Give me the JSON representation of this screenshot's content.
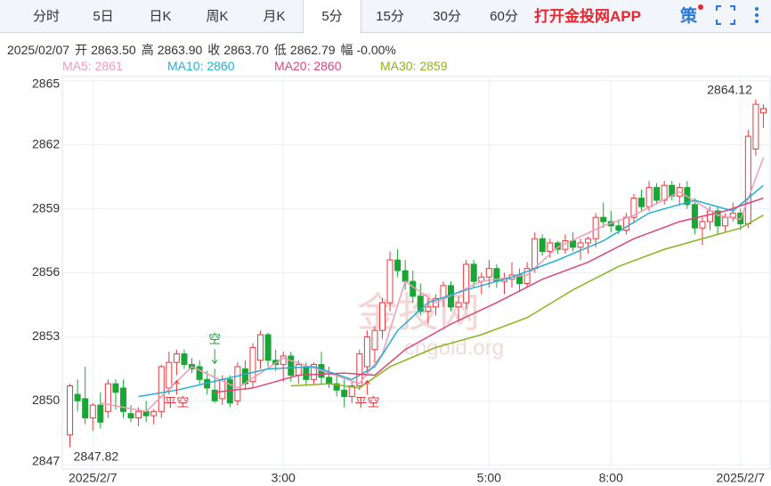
{
  "header": {
    "tabs": [
      "分时",
      "5日",
      "日K",
      "周K",
      "月K",
      "5分",
      "15分",
      "30分",
      "60分"
    ],
    "active_tab": 5,
    "app_link": "打开金投网APP",
    "strategy": "策",
    "date": "2025/02/07",
    "info": [
      {
        "label": "开",
        "value": "2863.50"
      },
      {
        "label": "高",
        "value": "2863.90"
      },
      {
        "label": "收",
        "value": "2863.70"
      },
      {
        "label": "低",
        "value": "2862.79"
      },
      {
        "label": "幅",
        "value": "-0.00%"
      }
    ]
  },
  "chart_data": {
    "type": "candlestick",
    "up_color": "#e8383d",
    "down_color": "#1aa637",
    "grid": true,
    "watermark": [
      "金投网",
      "cngold.org"
    ],
    "ylim": [
      2846.8,
      2865.2
    ],
    "yticks": [
      2847,
      2850,
      2853,
      2856,
      2859,
      2862,
      2865
    ],
    "xlim": [
      -1,
      92
    ],
    "xticks": [
      {
        "value": 3,
        "label": "2025/2/7"
      },
      {
        "value": 28,
        "label": "3:00"
      },
      {
        "value": 55,
        "label": "5:00"
      },
      {
        "value": 71,
        "label": "8:00"
      },
      {
        "value": 88,
        "label": "2025/2/7"
      }
    ],
    "ohlc": [
      [
        2848.4,
        2850.8,
        2847.82,
        2850.7
      ],
      [
        2850.3,
        2851.0,
        2849.5,
        2850.0
      ],
      [
        2850.1,
        2851.6,
        2848.9,
        2849.2
      ],
      [
        2849.2,
        2849.9,
        2848.6,
        2849.8
      ],
      [
        2849.8,
        2850.4,
        2848.7,
        2849.0
      ],
      [
        2849.5,
        2851.0,
        2849.2,
        2850.8
      ],
      [
        2850.8,
        2851.0,
        2849.6,
        2850.4
      ],
      [
        2850.6,
        2851.0,
        2849.2,
        2849.5
      ],
      [
        2849.4,
        2849.8,
        2849.0,
        2849.2
      ],
      [
        2849.2,
        2849.7,
        2848.8,
        2849.5
      ],
      [
        2849.5,
        2850.0,
        2849.0,
        2849.3
      ],
      [
        2849.3,
        2849.6,
        2848.9,
        2849.5
      ],
      [
        2849.5,
        2851.7,
        2849.2,
        2851.6
      ],
      [
        2850.6,
        2852.3,
        2850.3,
        2851.8
      ],
      [
        2851.8,
        2852.4,
        2851.2,
        2852.2
      ],
      [
        2852.2,
        2852.4,
        2851.5,
        2851.7
      ],
      [
        2851.7,
        2852.0,
        2851.3,
        2851.5
      ],
      [
        2851.6,
        2851.9,
        2850.8,
        2851.0
      ],
      [
        2851.0,
        2851.4,
        2850.3,
        2850.6
      ],
      [
        2850.5,
        2851.5,
        2849.9,
        2850.0
      ],
      [
        2850.1,
        2851.2,
        2849.8,
        2851.0
      ],
      [
        2851.0,
        2851.2,
        2849.7,
        2849.9
      ],
      [
        2850.0,
        2851.8,
        2849.8,
        2851.6
      ],
      [
        2851.5,
        2851.9,
        2850.5,
        2850.8
      ],
      [
        2850.9,
        2852.7,
        2850.6,
        2852.5
      ],
      [
        2851.9,
        2853.3,
        2851.5,
        2853.1
      ],
      [
        2853.1,
        2853.2,
        2851.6,
        2851.9
      ],
      [
        2851.9,
        2852.4,
        2851.4,
        2851.7
      ],
      [
        2851.7,
        2852.3,
        2850.9,
        2852.1
      ],
      [
        2852.1,
        2852.3,
        2850.9,
        2851.2
      ],
      [
        2851.2,
        2851.9,
        2850.8,
        2851.7
      ],
      [
        2851.6,
        2851.8,
        2850.7,
        2851.0
      ],
      [
        2851.0,
        2851.8,
        2850.8,
        2851.7
      ],
      [
        2851.7,
        2852.3,
        2850.8,
        2851.1
      ],
      [
        2851.1,
        2851.6,
        2850.6,
        2850.8
      ],
      [
        2850.8,
        2851.3,
        2850.2,
        2850.5
      ],
      [
        2850.5,
        2851.0,
        2849.7,
        2850.2
      ],
      [
        2850.2,
        2850.9,
        2849.9,
        2850.7
      ],
      [
        2850.7,
        2852.4,
        2850.5,
        2852.2
      ],
      [
        2851.6,
        2853.3,
        2851.2,
        2853.0
      ],
      [
        2852.4,
        2853.5,
        2851.8,
        2853.3
      ],
      [
        2853.3,
        2854.8,
        2852.9,
        2854.6
      ],
      [
        2854.6,
        2857.0,
        2854.2,
        2856.6
      ],
      [
        2856.6,
        2857.1,
        2855.8,
        2856.1
      ],
      [
        2856.1,
        2856.6,
        2855.2,
        2855.6
      ],
      [
        2855.6,
        2856.1,
        2854.6,
        2854.9
      ],
      [
        2854.9,
        2855.5,
        2854.0,
        2854.2
      ],
      [
        2854.2,
        2854.8,
        2853.6,
        2854.4
      ],
      [
        2854.4,
        2855.0,
        2854.0,
        2854.8
      ],
      [
        2854.8,
        2855.6,
        2854.4,
        2855.4
      ],
      [
        2855.4,
        2855.6,
        2854.2,
        2854.4
      ],
      [
        2854.4,
        2854.9,
        2853.7,
        2854.6
      ],
      [
        2854.6,
        2856.6,
        2854.3,
        2856.4
      ],
      [
        2856.4,
        2856.6,
        2855.3,
        2855.6
      ],
      [
        2855.6,
        2856.0,
        2855.0,
        2855.8
      ],
      [
        2855.8,
        2856.6,
        2855.3,
        2856.2
      ],
      [
        2856.2,
        2856.4,
        2855.3,
        2855.6
      ],
      [
        2855.6,
        2856.0,
        2855.0,
        2855.7
      ],
      [
        2855.7,
        2856.5,
        2855.3,
        2855.9
      ],
      [
        2855.9,
        2856.2,
        2855.1,
        2855.5
      ],
      [
        2855.5,
        2856.5,
        2855.3,
        2856.2
      ],
      [
        2856.2,
        2857.9,
        2856.0,
        2857.6
      ],
      [
        2857.6,
        2857.8,
        2856.8,
        2857.0
      ],
      [
        2857.0,
        2857.6,
        2856.7,
        2857.4
      ],
      [
        2857.4,
        2857.5,
        2856.9,
        2857.1
      ],
      [
        2857.1,
        2857.8,
        2856.9,
        2857.5
      ],
      [
        2857.5,
        2857.9,
        2857.0,
        2857.2
      ],
      [
        2857.2,
        2857.6,
        2856.6,
        2857.4
      ],
      [
        2857.4,
        2857.7,
        2856.9,
        2857.6
      ],
      [
        2857.6,
        2858.8,
        2857.2,
        2858.6
      ],
      [
        2858.6,
        2859.3,
        2858.1,
        2858.4
      ],
      [
        2858.4,
        2858.9,
        2857.9,
        2858.2
      ],
      [
        2858.2,
        2858.5,
        2857.8,
        2858.0
      ],
      [
        2858.0,
        2858.8,
        2857.8,
        2858.6
      ],
      [
        2858.6,
        2859.7,
        2858.3,
        2859.5
      ],
      [
        2859.5,
        2859.9,
        2858.9,
        2859.1
      ],
      [
        2859.1,
        2860.3,
        2858.9,
        2860.0
      ],
      [
        2860.0,
        2860.2,
        2859.2,
        2859.4
      ],
      [
        2859.4,
        2860.3,
        2859.2,
        2860.1
      ],
      [
        2860.1,
        2860.3,
        2859.4,
        2859.6
      ],
      [
        2859.6,
        2860.2,
        2859.2,
        2860.0
      ],
      [
        2860.0,
        2860.3,
        2859.0,
        2859.2
      ],
      [
        2859.2,
        2859.5,
        2857.8,
        2858.1
      ],
      [
        2858.1,
        2858.6,
        2857.3,
        2858.4
      ],
      [
        2858.4,
        2859.1,
        2858.0,
        2858.9
      ],
      [
        2858.9,
        2859.1,
        2857.8,
        2858.2
      ],
      [
        2858.2,
        2858.8,
        2857.9,
        2858.6
      ],
      [
        2858.6,
        2859.3,
        2858.4,
        2858.8
      ],
      [
        2858.8,
        2859.0,
        2858.0,
        2858.3
      ],
      [
        2858.3,
        2862.7,
        2858.1,
        2862.4
      ],
      [
        2861.8,
        2864.12,
        2861.5,
        2863.9
      ],
      [
        2863.5,
        2863.9,
        2862.79,
        2863.7
      ]
    ],
    "max_label": [
      90,
      1
    ],
    "min_label": [
      0,
      2
    ],
    "series": [
      {
        "name": "MA5: 2861",
        "color": "#f29ab9",
        "x": [
          4,
          10,
          16,
          22,
          28,
          34,
          38,
          41,
          44,
          48,
          54,
          60,
          64,
          70,
          74,
          80,
          85,
          88,
          91
        ],
        "values": [
          2849.9,
          2849.5,
          2851.6,
          2850.6,
          2852.0,
          2851.3,
          2850.8,
          2852.2,
          2855.6,
          2854.6,
          2855.6,
          2855.9,
          2857.2,
          2858.2,
          2858.7,
          2859.8,
          2858.7,
          2858.5,
          2861.4
        ]
      },
      {
        "name": "MA10: 2860",
        "color": "#22b0d6",
        "x": [
          9,
          14,
          20,
          26,
          32,
          37,
          40,
          43,
          47,
          52,
          58,
          64,
          70,
          76,
          82,
          87,
          91
        ],
        "values": [
          2850.2,
          2850.5,
          2851.0,
          2851.5,
          2851.6,
          2851.0,
          2851.6,
          2853.3,
          2854.6,
          2855.2,
          2855.8,
          2856.6,
          2857.5,
          2858.8,
          2859.4,
          2858.9,
          2860.1
        ]
      },
      {
        "name": "MA20: 2860",
        "color": "#e0457a",
        "x": [
          19,
          24,
          30,
          36,
          40,
          44,
          50,
          56,
          62,
          68,
          74,
          80,
          86,
          91
        ],
        "values": [
          2850.4,
          2850.6,
          2851.2,
          2851.3,
          2851.2,
          2852.4,
          2853.6,
          2854.6,
          2855.7,
          2856.5,
          2857.6,
          2858.4,
          2858.9,
          2859.5
        ]
      },
      {
        "name": "MA30: 2859",
        "color": "#8ab520",
        "x": [
          29,
          34,
          38,
          42,
          48,
          54,
          60,
          66,
          72,
          78,
          84,
          88,
          91
        ],
        "values": [
          2850.7,
          2850.8,
          2850.6,
          2851.6,
          2852.5,
          2853.1,
          2853.9,
          2855.2,
          2856.3,
          2857.1,
          2857.7,
          2858.1,
          2858.7
        ]
      }
    ],
    "annotations": [
      {
        "text": "平空",
        "x": 14,
        "arrow": "up"
      },
      {
        "text": "空",
        "x": 19,
        "arrow": "down"
      },
      {
        "text": "平空",
        "x": 39,
        "arrow": "up"
      }
    ]
  }
}
